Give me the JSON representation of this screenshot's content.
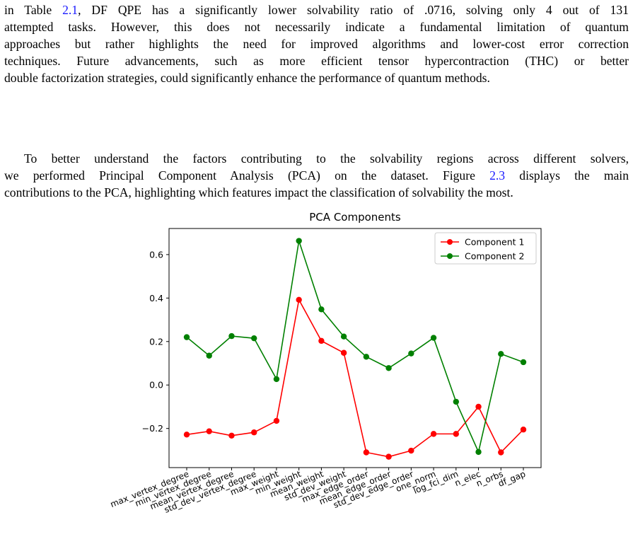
{
  "paragraphs": {
    "p1": {
      "line1_pre": "in Table ",
      "line1_ref": "2.1",
      "line1_post": ", DF QPE has a significantly lower solvability ratio of .0716, solving only 4 out of 131",
      "line2": "attempted tasks. However, this does not necessarily indicate a fundamental limitation of quantum",
      "line3": "approaches but rather highlights the need for improved algorithms and lower-cost error correction",
      "line4": "techniques. Future advancements, such as more efficient tensor hypercontraction (THC) or better",
      "line5": "double factorization strategies, could significantly enhance the performance of quantum methods."
    },
    "p2": {
      "line1": "To better understand the factors contributing to the solvability regions across different solvers,",
      "line2_pre": "we performed Principal Component Analysis (PCA) on the dataset. Figure ",
      "line2_ref": "2.3",
      "line2_post": " displays the main",
      "line3": "contributions to the PCA, highlighting which features impact the classification of solvability the most."
    }
  },
  "chart_data": {
    "type": "line",
    "title": "PCA Components",
    "xlabel": "",
    "ylabel": "",
    "categories": [
      "max_vertex_degree",
      "min_vertex_degree",
      "mean_vertex_degree",
      "std_dev_vertex_degree",
      "max_weight",
      "min_weight",
      "mean_weight",
      "std_dev_weight",
      "max_edge_order",
      "mean_edge_order",
      "std_dev_edge_order",
      "one_norm",
      "log_fci_dim",
      "n_elec",
      "n_orbs",
      "df_gap"
    ],
    "series": [
      {
        "name": "Component 1",
        "color": "#ff0000",
        "values": [
          -0.228,
          -0.213,
          -0.233,
          -0.218,
          -0.165,
          0.392,
          0.203,
          0.148,
          -0.31,
          -0.33,
          -0.302,
          -0.225,
          -0.225,
          -0.1,
          -0.31,
          -0.205
        ]
      },
      {
        "name": "Component 2",
        "color": "#008000",
        "values": [
          0.22,
          0.135,
          0.225,
          0.215,
          0.027,
          0.663,
          0.348,
          0.223,
          0.13,
          0.078,
          0.145,
          0.217,
          -0.077,
          -0.308,
          0.143,
          0.105
        ]
      }
    ],
    "ylim": [
      -0.38,
      0.72
    ],
    "yticks": [
      -0.2,
      0.0,
      0.2,
      0.4,
      0.6
    ],
    "ytick_labels": [
      "−0.2",
      "0.0",
      "0.2",
      "0.4",
      "0.6"
    ],
    "legend_position": "top-right",
    "grid": false
  }
}
